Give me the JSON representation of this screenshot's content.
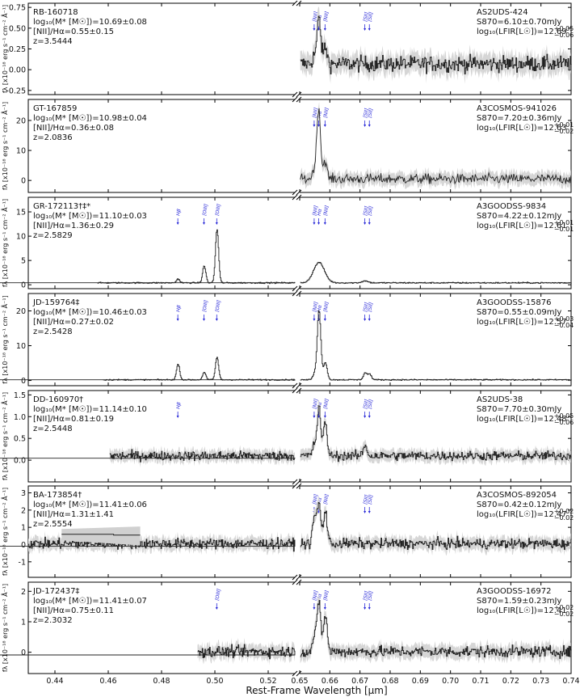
{
  "chart_data": {
    "type": "line",
    "xlabel": "Rest-Frame Wavelength [μm]",
    "x_ticks_left": [
      0.44,
      0.46,
      0.48,
      0.5,
      0.52
    ],
    "x_ticks_right": [
      0.65,
      0.66,
      0.67,
      0.68,
      0.69,
      0.7,
      0.71,
      0.72,
      0.73,
      0.74
    ],
    "xlim_left": [
      0.43,
      0.53
    ],
    "xlim_right": [
      0.65,
      0.74
    ],
    "line_markers": [
      {
        "label": "Hβ",
        "x": 0.4861
      },
      {
        "label": "[OIII]",
        "x": 0.4959
      },
      {
        "label": "[OIII]",
        "x": 0.5007
      },
      {
        "label": "[NII]",
        "x": 0.6548
      },
      {
        "label": "Hα",
        "x": 0.6563
      },
      {
        "label": "[NII]",
        "x": 0.6584
      },
      {
        "label": "[SII]",
        "x": 0.6716
      },
      {
        "label": "[SII]",
        "x": 0.6731
      }
    ],
    "panels": [
      {
        "name": "RB-160718",
        "mass": "log₁₀(M* [M☉])=10.69±0.08",
        "nii": "[NII]/Hα=0.55±0.15",
        "z": "z=3.5444",
        "cat": "AS2UDS-424",
        "flux": "S870=6.10±0.70mJy",
        "lfir": "log₁₀(LFIR[L☉])=12.69",
        "lfir_up": "+0.05",
        "lfir_dn": "−0.06",
        "ylabel": "fλ [x10⁻¹⁸ erg s⁻¹ cm⁻² Å⁻¹]",
        "ylim": [
          -0.3,
          0.8
        ],
        "yticks": [
          "0.75",
          "0.50",
          "0.25",
          "0.00",
          "-0.25"
        ],
        "ytick_values": [
          0.75,
          0.5,
          0.25,
          0.0,
          -0.25
        ],
        "left_range": null,
        "right_range": [
          0.6502,
          0.74
        ],
        "lines": [
          {
            "x": 0.6563,
            "amp": 0.55
          },
          {
            "x": 0.6584,
            "amp": 0.2
          },
          {
            "x": 0.6548,
            "amp": 0.1
          }
        ],
        "noise": 0.09,
        "cont": 0.07,
        "markers": [
          3,
          4,
          5,
          6,
          7
        ]
      },
      {
        "name": "GT-167859",
        "mass": "log₁₀(M* [M☉])=10.98±0.04",
        "nii": "[NII]/Hα=0.36±0.08",
        "z": "z=2.0836",
        "cat": "A3COSMOS-941026",
        "flux": "S870=7.20±0.36mJy",
        "lfir": "log₁₀(LFIR[L☉])=12.63",
        "lfir_up": "+0.01",
        "lfir_dn": "−0.02",
        "ylabel": "fλ [x10⁻¹⁸ erg s⁻¹ cm⁻² Å⁻¹]",
        "ylim": [
          -4,
          27
        ],
        "yticks": [
          "20",
          "10",
          "0"
        ],
        "ytick_values": [
          20,
          10,
          0
        ],
        "left_range": null,
        "right_range": [
          0.6502,
          0.74
        ],
        "lines": [
          {
            "x": 0.6563,
            "amp": 24
          },
          {
            "x": 0.6584,
            "amp": 6
          },
          {
            "x": 0.6548,
            "amp": 3
          }
        ],
        "noise": 1.6,
        "cont": 0.5,
        "markers": [
          3,
          4,
          5,
          6,
          7
        ]
      },
      {
        "name": "GR-172113†‡*",
        "mass": "log₁₀(M* [M☉])=11.10±0.03",
        "nii": "[NII]/Hα=1.36±0.29",
        "z": "z=2.5829",
        "cat": "A3GOODSS-9834",
        "flux": "S870=4.22±0.12mJy",
        "lfir": "log₁₀(LFIR[L☉])=12.61",
        "lfir_up": "+0.01",
        "lfir_dn": "−0.01",
        "ylabel": "fλ [x10⁻¹⁸ erg s⁻¹ cm⁻² Å⁻¹]",
        "ylim": [
          -0.8,
          18
        ],
        "yticks": [
          "15",
          "10",
          "5",
          "0"
        ],
        "ytick_values": [
          15,
          10,
          5,
          0
        ],
        "left_range": [
          0.456,
          0.53
        ],
        "right_range": [
          0.6502,
          0.74
        ],
        "lines": [
          {
            "x": 0.5007,
            "amp": 11
          },
          {
            "x": 0.4959,
            "amp": 3.5
          },
          {
            "x": 0.4861,
            "amp": 0.8
          },
          {
            "x": 0.6563,
            "amp": 4.2,
            "w": 0.0018
          },
          {
            "x": 0.6716,
            "amp": 0.4,
            "w": 0.001
          }
        ],
        "noise": 0.12,
        "cont": 0.4,
        "markers": [
          0,
          1,
          2,
          3,
          4,
          5,
          6,
          7
        ]
      },
      {
        "name": "JD-159764‡",
        "mass": "log₁₀(M* [M☉])=10.46±0.03",
        "nii": "[NII]/Hα=0.27±0.02",
        "z": "z=2.5428",
        "cat": "A3GOODSS-15876",
        "flux": "S870=0.55±0.09mJy",
        "lfir": "log₁₀(LFIR[L☉])=12.57",
        "lfir_up": "+0.03",
        "lfir_dn": "−0.04",
        "ylabel": "fλ [x10⁻¹⁸ erg s⁻¹ cm⁻² Å⁻¹]",
        "ylim": [
          -1.5,
          25
        ],
        "yticks": [
          "20",
          "10",
          "0"
        ],
        "ytick_values": [
          20,
          10,
          0
        ],
        "left_range": [
          0.458,
          0.53
        ],
        "right_range": [
          0.6502,
          0.74
        ],
        "lines": [
          {
            "x": 0.5007,
            "amp": 6.5
          },
          {
            "x": 0.4959,
            "amp": 2.2
          },
          {
            "x": 0.4861,
            "amp": 4.5
          },
          {
            "x": 0.6563,
            "amp": 20
          },
          {
            "x": 0.6584,
            "amp": 5
          },
          {
            "x": 0.6548,
            "amp": 1.5
          },
          {
            "x": 0.6716,
            "amp": 2
          },
          {
            "x": 0.6731,
            "amp": 1.6
          }
        ],
        "noise": 0.15,
        "cont": 0.2,
        "markers": [
          0,
          1,
          2,
          3,
          4,
          5,
          6,
          7
        ]
      },
      {
        "name": "DD-160970†",
        "mass": "log₁₀(M* [M☉])=11.14±0.10",
        "nii": "[NII]/Hα=0.81±0.19",
        "z": "z=2.5448",
        "cat": "AS2UDS-38",
        "flux": "S870=7.70±0.30mJy",
        "lfir": "log₁₀(LFIR[L☉])=12.48",
        "lfir_up": "+0.05",
        "lfir_dn": "−0.06",
        "ylabel": "fλ [x10⁻¹⁸ erg s⁻¹ cm⁻² Å⁻¹]",
        "ylim": [
          -0.5,
          1.6
        ],
        "yticks": [
          "1.5",
          "1.0",
          "0.5",
          "0.0"
        ],
        "ytick_values": [
          1.5,
          1.0,
          0.5,
          0.0
        ],
        "left_range": [
          0.4605,
          0.53
        ],
        "right_range": [
          0.6502,
          0.74
        ],
        "lines": [
          {
            "x": 0.6563,
            "amp": 1.1
          },
          {
            "x": 0.6584,
            "amp": 0.75
          },
          {
            "x": 0.6548,
            "amp": 0.25
          },
          {
            "x": 0.6716,
            "amp": 0.25
          }
        ],
        "noise": 0.1,
        "cont": 0.1,
        "markers": [
          0,
          3,
          4,
          5,
          6,
          7
        ]
      },
      {
        "name": "BA-173854†",
        "mass": "log₁₀(M* [M☉])=11.41±0.06",
        "nii": "[NII]/Hα=1.31±1.41",
        "z": "z=2.5554",
        "cat": "A3COSMOS-892054",
        "flux": "S870=0.42±0.12mJy",
        "lfir": "log₁₀(LFIR[L☉])=12.47",
        "lfir_up": "+0.02",
        "lfir_dn": "−0.02",
        "ylabel": "fλ [x10⁻¹⁸ erg s⁻¹ cm⁻² Å⁻¹]",
        "ylim": [
          -1.9,
          3.4
        ],
        "yticks": [
          "3",
          "2",
          "1",
          "0",
          "-1"
        ],
        "ytick_values": [
          3,
          2,
          1,
          0,
          -1
        ],
        "left_range": [
          0.43,
          0.53
        ],
        "right_range": [
          0.6502,
          0.74
        ],
        "lines": [
          {
            "x": 0.6563,
            "amp": 2.3
          },
          {
            "x": 0.6584,
            "amp": 1.9
          },
          {
            "x": 0.6548,
            "amp": 1.5
          }
        ],
        "noise": 0.28,
        "cont": 0.05,
        "markers": [
          3,
          4,
          5,
          6,
          7
        ]
      },
      {
        "name": "JD-172437‡",
        "mass": "log₁₀(M* [M☉])=11.41±0.07",
        "nii": "[NII]/Hα=0.75±0.11",
        "z": "z=2.3032",
        "cat": "A3GOODSS-16972",
        "flux": "S870=1.59±0.23mJy",
        "lfir": "log₁₀(LFIR[L☉])=12.41",
        "lfir_up": "+0.02",
        "lfir_dn": "−0.02",
        "ylabel": "fλ [x10⁻¹⁸ erg s⁻¹ cm⁻² Å⁻¹]",
        "ylim": [
          -0.7,
          2.3
        ],
        "yticks": [
          "2",
          "1",
          "0"
        ],
        "ytick_values": [
          2,
          1,
          0
        ],
        "left_range": [
          0.4935,
          0.53
        ],
        "right_range": [
          0.6502,
          0.74
        ],
        "lines": [
          {
            "x": 0.6563,
            "amp": 1.6
          },
          {
            "x": 0.6584,
            "amp": 1.2
          },
          {
            "x": 0.6548,
            "amp": 0.5
          }
        ],
        "noise": 0.17,
        "cont": 0.02,
        "markers": [
          2,
          3,
          4,
          5,
          6,
          7
        ]
      }
    ]
  }
}
